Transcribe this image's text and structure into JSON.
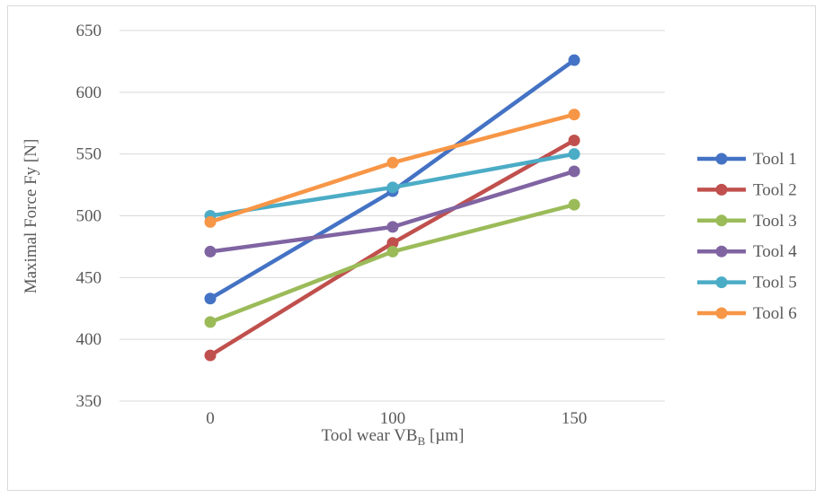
{
  "chart_data": {
    "type": "line",
    "categories": [
      "0",
      "100",
      "150"
    ],
    "ylim": [
      350,
      650
    ],
    "yticks": [
      350,
      400,
      450,
      500,
      550,
      600,
      650
    ],
    "ylabel": "Maximal Force Fy [N]",
    "xlabel": {
      "main": "Tool wear VB",
      "subscript": "B",
      "unit": " [µm]"
    },
    "grid": true,
    "legend_position": "right",
    "series": [
      {
        "name": "Tool 1",
        "color": "#4472c4",
        "values": [
          433,
          520,
          626
        ]
      },
      {
        "name": "Tool 2",
        "color": "#c0504d",
        "values": [
          387,
          478,
          561
        ]
      },
      {
        "name": "Tool 3",
        "color": "#9bbb59",
        "values": [
          414,
          471,
          509
        ]
      },
      {
        "name": "Tool 4",
        "color": "#8064a2",
        "values": [
          471,
          491,
          536
        ]
      },
      {
        "name": "Tool 5",
        "color": "#4bacc6",
        "values": [
          500,
          523,
          550
        ]
      },
      {
        "name": "Tool 6",
        "color": "#f79646",
        "values": [
          495,
          543,
          582
        ]
      }
    ]
  }
}
